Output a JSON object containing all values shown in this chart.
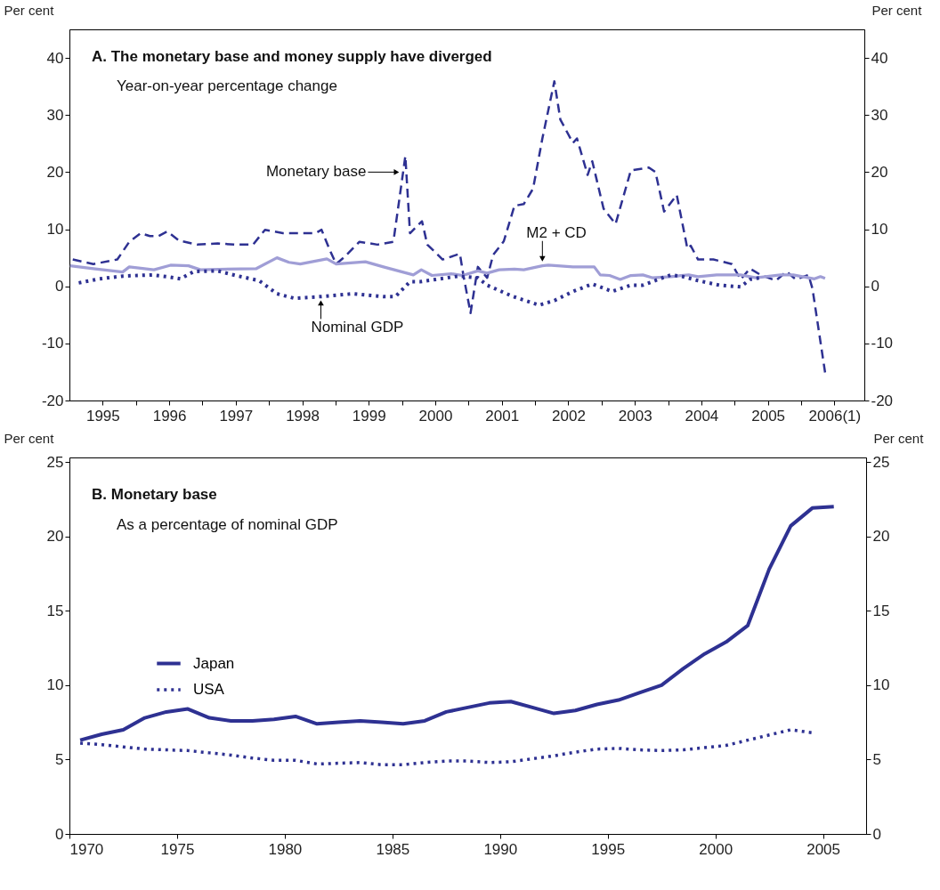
{
  "chart_data": [
    {
      "type": "line",
      "title": "A.  The monetary base and money supply have diverged",
      "subtitle": "Year-on-year percentage change",
      "ylabel": "Per cent",
      "y2label": "Per cent",
      "xlim": [
        1995,
        2006.95
      ],
      "xticks": [
        {
          "value": 1995.5,
          "label": "1995"
        },
        {
          "value": 1996,
          "label": null
        },
        {
          "value": 1996.5,
          "label": "1996"
        },
        {
          "value": 1997,
          "label": null
        },
        {
          "value": 1997.5,
          "label": "1997"
        },
        {
          "value": 1998,
          "label": null
        },
        {
          "value": 1998.5,
          "label": "1998"
        },
        {
          "value": 1999,
          "label": null
        },
        {
          "value": 1999.5,
          "label": "1999"
        },
        {
          "value": 2000,
          "label": null
        },
        {
          "value": 2000.5,
          "label": "2000"
        },
        {
          "value": 2001,
          "label": null
        },
        {
          "value": 2001.5,
          "label": "2001"
        },
        {
          "value": 2002,
          "label": null
        },
        {
          "value": 2002.5,
          "label": "2002"
        },
        {
          "value": 2003,
          "label": null
        },
        {
          "value": 2003.5,
          "label": "2003"
        },
        {
          "value": 2004,
          "label": null
        },
        {
          "value": 2004.5,
          "label": "2004"
        },
        {
          "value": 2005,
          "label": null
        },
        {
          "value": 2005.5,
          "label": "2005"
        },
        {
          "value": 2006,
          "label": null
        },
        {
          "value": 2006.5,
          "label": "2006(1)"
        }
      ],
      "ylim": [
        -20,
        45
      ],
      "yticks": [
        -20,
        -10,
        0,
        10,
        20,
        30,
        40
      ],
      "y2lim": [
        -20,
        45
      ],
      "y2ticks": [
        -20,
        -10,
        0,
        10,
        20,
        30,
        40
      ],
      "annotations": [
        {
          "text": "Monetary base",
          "x": 1999.97,
          "y": 20
        },
        {
          "text": "M2 + CD",
          "x": 2002.11,
          "y": 4.2
        },
        {
          "text": "Nominal GDP",
          "x": 1998.78,
          "y": -2.3
        }
      ],
      "series": [
        {
          "color": "#2e3192",
          "line_style": "dashed",
          "x": [
            1995.05,
            1995.36,
            1995.72,
            1995.9,
            1996.07,
            1996.21,
            1996.34,
            1996.47,
            1996.65,
            1996.92,
            1997.23,
            1997.5,
            1997.76,
            1997.94,
            1998.21,
            1998.47,
            1998.7,
            1998.79,
            1998.92,
            1999.01,
            1999.14,
            1999.36,
            1999.63,
            1999.87,
            2000.05,
            2000.12,
            2000.3,
            2000.38,
            2000.61,
            2000.87,
            2000.92,
            2001.03,
            2001.14,
            2001.28,
            2001.37,
            2001.53,
            2001.69,
            2001.83,
            2001.97,
            2002.11,
            2002.29,
            2002.38,
            2002.57,
            2002.63,
            2002.79,
            2002.86,
            2003.03,
            2003.21,
            2003.44,
            2003.71,
            2003.81,
            2003.94,
            2004.13,
            2004.29,
            2004.34,
            2004.45,
            2004.68,
            2004.96,
            2005.09,
            2005.23,
            2005.39,
            2005.62,
            2005.78,
            2005.92,
            2006.11,
            2006.17,
            2006.36
          ],
          "values": [
            4.7,
            3.9,
            4.7,
            7.8,
            9.3,
            8.8,
            8.8,
            9.6,
            8.0,
            7.3,
            7.5,
            7.3,
            7.3,
            9.9,
            9.3,
            9.3,
            9.3,
            9.9,
            6.2,
            3.9,
            5.2,
            7.8,
            7.3,
            7.8,
            22.8,
            9.3,
            11.4,
            7.3,
            4.7,
            5.7,
            2.1,
            -4.7,
            3.4,
            1.5,
            5.5,
            7.9,
            14.1,
            14.4,
            17.1,
            25.9,
            35.9,
            29.2,
            25.1,
            25.9,
            19.5,
            21.9,
            13.6,
            10.9,
            20.3,
            20.8,
            20.0,
            13.1,
            16.0,
            6.6,
            7.1,
            4.7,
            4.7,
            3.9,
            1.2,
            3.1,
            2.0,
            1.0,
            2.6,
            1.2,
            2.0,
            -0.4,
            -15.1
          ]
        },
        {
          "color": "#a09ed6",
          "line_style": "solid",
          "x": [
            1995.01,
            1995.36,
            1995.8,
            1995.9,
            1996.27,
            1996.52,
            1996.79,
            1996.97,
            1997.81,
            1998.12,
            1998.3,
            1998.47,
            1998.87,
            1999.01,
            1999.45,
            1999.72,
            2000.17,
            2000.29,
            2000.45,
            2000.74,
            2000.91,
            2001.14,
            2001.28,
            2001.46,
            2001.69,
            2001.83,
            2002.11,
            2002.2,
            2002.57,
            2002.89,
            2002.98,
            2003.12,
            2003.28,
            2003.44,
            2003.62,
            2003.76,
            2004.04,
            2004.31,
            2004.45,
            2004.73,
            2005.09,
            2005.32,
            2005.69,
            2005.88,
            2006.2,
            2006.29,
            2006.36
          ],
          "values": [
            3.6,
            3.1,
            2.5,
            3.4,
            2.9,
            3.7,
            3.6,
            2.9,
            3.1,
            5.0,
            4.2,
            3.9,
            4.8,
            3.9,
            4.3,
            3.4,
            2.0,
            2.9,
            1.9,
            2.2,
            1.9,
            2.7,
            2.3,
            2.9,
            3.0,
            2.9,
            3.6,
            3.7,
            3.4,
            3.4,
            2.0,
            1.9,
            1.2,
            1.9,
            2.0,
            1.5,
            1.7,
            2.0,
            1.7,
            2.0,
            2.0,
            1.5,
            2.0,
            2.0,
            1.3,
            1.7,
            1.4
          ]
        },
        {
          "color": "#2e3192",
          "line_style": "dotted",
          "x": [
            1995.14,
            1995.45,
            1995.81,
            1996.25,
            1996.52,
            1996.67,
            1996.87,
            1997.23,
            1997.5,
            1997.85,
            1998.12,
            1998.38,
            1998.78,
            1999.27,
            1999.72,
            1999.9,
            2000.12,
            2000.27,
            2000.86,
            2001.14,
            2001.28,
            2001.65,
            2002.06,
            2002.29,
            2002.57,
            2002.86,
            2003.16,
            2003.44,
            2003.62,
            2003.85,
            2004.04,
            2004.22,
            2004.45,
            2004.77,
            2005.09,
            2005.23,
            2005.39
          ],
          "values": [
            0.6,
            1.3,
            1.8,
            2.0,
            1.6,
            1.3,
            2.6,
            2.7,
            1.9,
            1.0,
            -1.3,
            -2.1,
            -1.8,
            -1.3,
            -1.8,
            -1.8,
            0.8,
            0.8,
            1.8,
            1.5,
            0.2,
            -1.7,
            -3.3,
            -2.5,
            -0.9,
            0.4,
            -0.9,
            0.2,
            0.2,
            1.2,
            2.0,
            1.7,
            1.0,
            0.2,
            -0.1,
            1.2,
            1.5
          ]
        }
      ]
    },
    {
      "type": "line",
      "title": "B.  Monetary base",
      "subtitle": "As a percentage of nominal GDP",
      "ylabel": "Per cent",
      "y2label": "Per cent",
      "legend": "left",
      "xlim": [
        1970,
        2007
      ],
      "xticks": [
        1970,
        1975,
        1980,
        1985,
        1990,
        1995,
        2000,
        2005
      ],
      "ylim": [
        0,
        25.3
      ],
      "yticks": [
        0,
        5,
        10,
        15,
        20,
        25
      ],
      "y2lim": [
        0,
        25.3
      ],
      "y2ticks": [
        0,
        5,
        10,
        15,
        20,
        25
      ],
      "x": [
        1970.5,
        1971.5,
        1972.5,
        1973.5,
        1974.5,
        1975.5,
        1976.5,
        1977.5,
        1978.5,
        1979.5,
        1980.5,
        1981.5,
        1982.5,
        1983.5,
        1984.5,
        1985.5,
        1986.5,
        1987.5,
        1988.5,
        1989.5,
        1990.5,
        1991.5,
        1992.5,
        1993.5,
        1994.5,
        1995.5,
        1996.5,
        1997.5,
        1998.5,
        1999.5,
        2000.5,
        2001.5,
        2002.5,
        2003.5,
        2004.5,
        2005.5
      ],
      "series": [
        {
          "name": "Japan",
          "color": "#2e3192",
          "line_style": "solid",
          "values": [
            6.3,
            6.7,
            7.0,
            7.8,
            8.2,
            8.4,
            7.8,
            7.6,
            7.6,
            7.7,
            7.9,
            7.4,
            7.5,
            7.6,
            7.5,
            7.4,
            7.6,
            8.2,
            8.5,
            8.8,
            8.9,
            8.5,
            8.1,
            8.3,
            8.7,
            9.0,
            9.5,
            10.0,
            11.1,
            12.1,
            12.9,
            14.0,
            17.8,
            20.7,
            21.9,
            22.0
          ]
        },
        {
          "name": "USA",
          "color": "#2e3192",
          "line_style": "dotted",
          "values": [
            6.1,
            6.0,
            5.85,
            5.7,
            5.65,
            5.6,
            5.45,
            5.3,
            5.1,
            4.95,
            4.95,
            4.7,
            4.75,
            4.8,
            4.65,
            4.65,
            4.8,
            4.9,
            4.9,
            4.8,
            4.85,
            5.05,
            5.25,
            5.5,
            5.7,
            5.75,
            5.65,
            5.6,
            5.65,
            5.8,
            5.95,
            6.3,
            6.65,
            7.0,
            6.8,
            null
          ]
        }
      ]
    }
  ]
}
